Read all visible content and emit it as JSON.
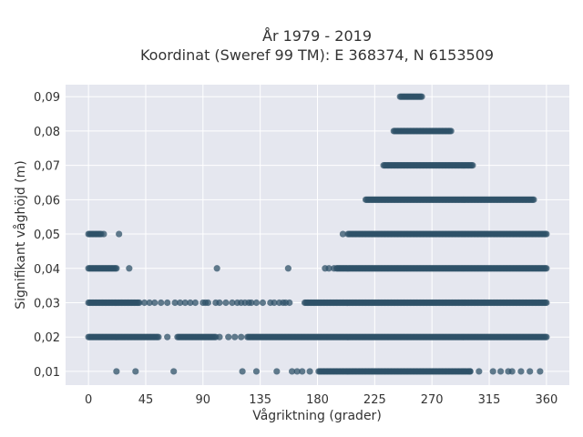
{
  "chart_data": {
    "type": "scatter",
    "title": "År 1979 - 2019",
    "subtitle": "Koordinat (Sweref 99 TM): E 368374, N 6153509",
    "xlabel": "Vågriktning (grader)",
    "ylabel": "Signifikant våghöjd (m)",
    "xlim": [
      -18,
      378
    ],
    "ylim": [
      0.006,
      0.0935
    ],
    "x_ticks": [
      0,
      45,
      90,
      135,
      180,
      225,
      270,
      315,
      360
    ],
    "y_ticks": [
      0.01,
      0.02,
      0.03,
      0.04,
      0.05,
      0.06,
      0.07,
      0.08,
      0.09
    ],
    "y_tick_labels": [
      "0,01",
      "0,02",
      "0,03",
      "0,04",
      "0,05",
      "0,06",
      "0,07",
      "0,08",
      "0,09"
    ],
    "grid": true,
    "marker_color": "#2f5168",
    "plot_bg": "#e5e7ef",
    "grid_color": "#ffffff",
    "levels": [
      {
        "y": 0.01,
        "ranges": [
          [
            181,
            300
          ]
        ],
        "points": [
          22,
          37,
          67,
          121,
          132,
          148,
          160,
          164,
          168,
          174,
          300,
          307,
          318,
          324,
          330,
          333,
          340,
          347,
          355
        ]
      },
      {
        "y": 0.02,
        "ranges": [
          [
            0,
            55
          ],
          [
            70,
            100
          ],
          [
            125,
            360
          ]
        ],
        "points": [
          62,
          103,
          110,
          115,
          120
        ]
      },
      {
        "y": 0.03,
        "ranges": [
          [
            0,
            40
          ],
          [
            170,
            360
          ]
        ],
        "points": [
          44,
          48,
          52,
          57,
          62,
          68,
          72,
          76,
          80,
          84,
          90,
          92,
          94,
          100,
          103,
          108,
          113,
          117,
          120,
          123,
          126,
          128,
          132,
          137,
          143,
          146,
          150,
          153,
          155,
          158
        ]
      },
      {
        "y": 0.04,
        "ranges": [
          [
            0,
            22
          ],
          [
            195,
            360
          ]
        ],
        "points": [
          32,
          101,
          157,
          186,
          189,
          193
        ]
      },
      {
        "y": 0.05,
        "ranges": [
          [
            0,
            10
          ],
          [
            205,
            360
          ]
        ],
        "points": [
          12,
          24,
          200,
          204
        ]
      },
      {
        "y": 0.06,
        "ranges": [
          [
            218,
            350
          ]
        ],
        "points": []
      },
      {
        "y": 0.07,
        "ranges": [
          [
            232,
            302
          ]
        ],
        "points": []
      },
      {
        "y": 0.08,
        "ranges": [
          [
            240,
            285
          ]
        ],
        "points": []
      },
      {
        "y": 0.09,
        "ranges": [
          [
            245,
            262
          ]
        ],
        "points": []
      }
    ]
  }
}
